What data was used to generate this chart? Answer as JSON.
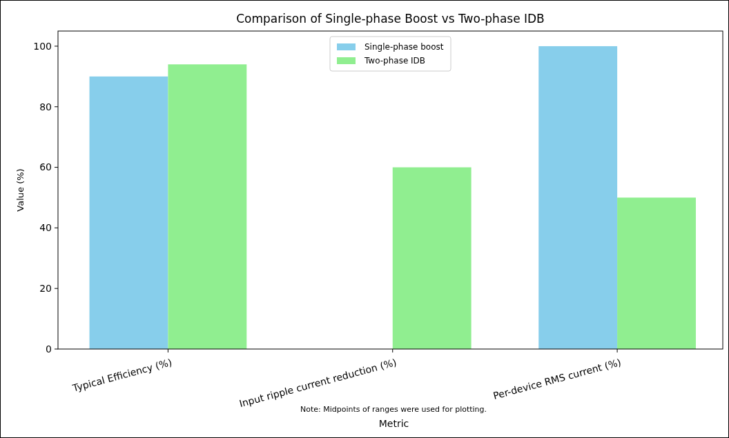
{
  "chart_data": {
    "type": "bar",
    "title": "Comparison of Single-phase Boost vs Two-phase IDB",
    "xlabel": "Metric",
    "ylabel": "Value (%)",
    "categories": [
      "Typical Efficiency (%)",
      "Input ripple current reduction (%)",
      "Per-device RMS current (%)"
    ],
    "series": [
      {
        "name": "Single-phase boost",
        "color": "#87ceeb",
        "values": [
          90,
          0,
          100
        ]
      },
      {
        "name": "Two-phase IDB",
        "color": "#90ee90",
        "values": [
          94,
          60,
          50
        ]
      }
    ],
    "ylim": [
      0,
      105
    ],
    "yticks": [
      0,
      20,
      40,
      60,
      80,
      100
    ],
    "grid": false,
    "legend": "top",
    "annotations": [
      "Note: Midpoints of ranges were used for plotting."
    ]
  }
}
